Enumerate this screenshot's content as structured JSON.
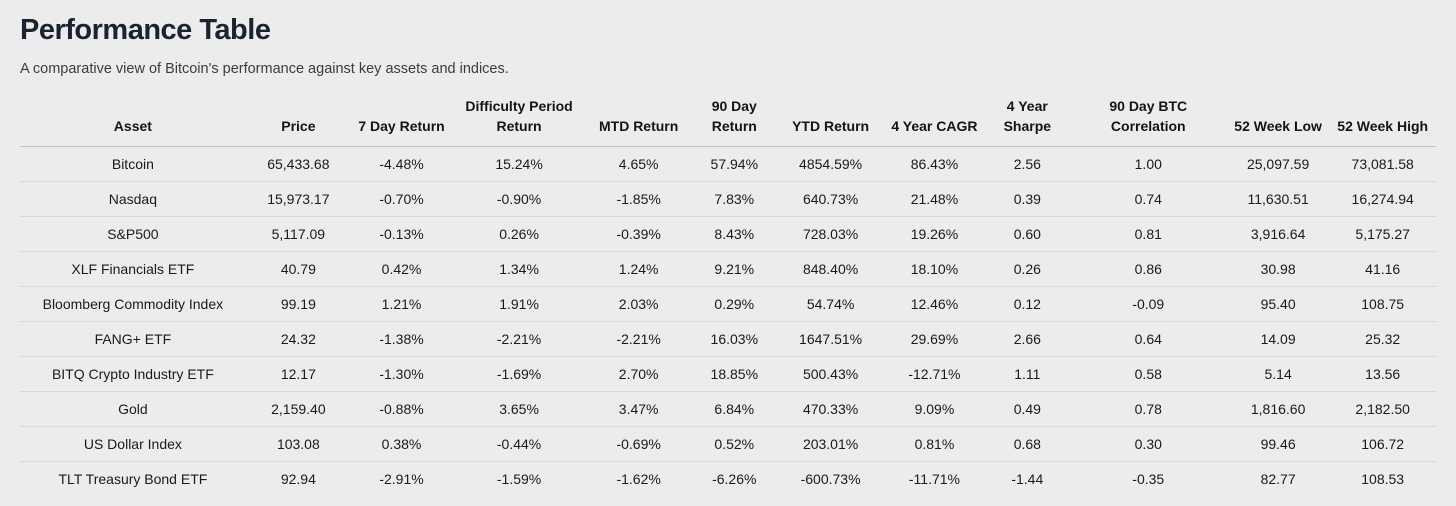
{
  "header": {
    "title": "Performance Table",
    "subtitle": "A comparative view of Bitcoin's performance against key assets and indices."
  },
  "colors": {
    "positive": "#178a20",
    "negative": "#e03131",
    "background": "#ececec",
    "title_text": "#1b2230"
  },
  "table": {
    "columns": [
      {
        "key": "asset",
        "label": "Asset",
        "colored": false
      },
      {
        "key": "price",
        "label": "Price",
        "colored": false
      },
      {
        "key": "return_7d",
        "label": "7 Day Return",
        "colored": true
      },
      {
        "key": "difficulty_period_return",
        "label": "Difficulty Period\nReturn",
        "colored": true
      },
      {
        "key": "mtd_return",
        "label": "MTD Return",
        "colored": true
      },
      {
        "key": "return_90d",
        "label": "90 Day\nReturn",
        "colored": true
      },
      {
        "key": "ytd_return",
        "label": "YTD Return",
        "colored": true
      },
      {
        "key": "cagr_4y",
        "label": "4 Year CAGR",
        "colored": true
      },
      {
        "key": "sharpe_4y",
        "label": "4 Year\nSharpe",
        "colored": true
      },
      {
        "key": "btc_correlation_90d",
        "label": "90 Day BTC\nCorrelation",
        "colored": true
      },
      {
        "key": "week52_low",
        "label": "52 Week Low",
        "colored": false
      },
      {
        "key": "week52_high",
        "label": "52 Week High",
        "colored": false
      }
    ],
    "rows": [
      {
        "asset": "Bitcoin",
        "price": "65,433.68",
        "return_7d": "-4.48%",
        "difficulty_period_return": "15.24%",
        "mtd_return": "4.65%",
        "return_90d": "57.94%",
        "ytd_return": "4854.59%",
        "cagr_4y": "86.43%",
        "sharpe_4y": "2.56",
        "btc_correlation_90d": "1.00",
        "week52_low": "25,097.59",
        "week52_high": "73,081.58"
      },
      {
        "asset": "Nasdaq",
        "price": "15,973.17",
        "return_7d": "-0.70%",
        "difficulty_period_return": "-0.90%",
        "mtd_return": "-1.85%",
        "return_90d": "7.83%",
        "ytd_return": "640.73%",
        "cagr_4y": "21.48%",
        "sharpe_4y": "0.39",
        "btc_correlation_90d": "0.74",
        "week52_low": "11,630.51",
        "week52_high": "16,274.94"
      },
      {
        "asset": "S&P500",
        "price": "5,117.09",
        "return_7d": "-0.13%",
        "difficulty_period_return": "0.26%",
        "mtd_return": "-0.39%",
        "return_90d": "8.43%",
        "ytd_return": "728.03%",
        "cagr_4y": "19.26%",
        "sharpe_4y": "0.60",
        "btc_correlation_90d": "0.81",
        "week52_low": "3,916.64",
        "week52_high": "5,175.27"
      },
      {
        "asset": "XLF Financials ETF",
        "price": "40.79",
        "return_7d": "0.42%",
        "difficulty_period_return": "1.34%",
        "mtd_return": "1.24%",
        "return_90d": "9.21%",
        "ytd_return": "848.40%",
        "cagr_4y": "18.10%",
        "sharpe_4y": "0.26",
        "btc_correlation_90d": "0.86",
        "week52_low": "30.98",
        "week52_high": "41.16"
      },
      {
        "asset": "Bloomberg Commodity Index",
        "price": "99.19",
        "return_7d": "1.21%",
        "difficulty_period_return": "1.91%",
        "mtd_return": "2.03%",
        "return_90d": "0.29%",
        "ytd_return": "54.74%",
        "cagr_4y": "12.46%",
        "sharpe_4y": "0.12",
        "btc_correlation_90d": "-0.09",
        "week52_low": "95.40",
        "week52_high": "108.75"
      },
      {
        "asset": "FANG+ ETF",
        "price": "24.32",
        "return_7d": "-1.38%",
        "difficulty_period_return": "-2.21%",
        "mtd_return": "-2.21%",
        "return_90d": "16.03%",
        "ytd_return": "1647.51%",
        "cagr_4y": "29.69%",
        "sharpe_4y": "2.66",
        "btc_correlation_90d": "0.64",
        "week52_low": "14.09",
        "week52_high": "25.32"
      },
      {
        "asset": "BITQ Crypto Industry ETF",
        "price": "12.17",
        "return_7d": "-1.30%",
        "difficulty_period_return": "-1.69%",
        "mtd_return": "2.70%",
        "return_90d": "18.85%",
        "ytd_return": "500.43%",
        "cagr_4y": "-12.71%",
        "sharpe_4y": "1.11",
        "btc_correlation_90d": "0.58",
        "week52_low": "5.14",
        "week52_high": "13.56"
      },
      {
        "asset": "Gold",
        "price": "2,159.40",
        "return_7d": "-0.88%",
        "difficulty_period_return": "3.65%",
        "mtd_return": "3.47%",
        "return_90d": "6.84%",
        "ytd_return": "470.33%",
        "cagr_4y": "9.09%",
        "sharpe_4y": "0.49",
        "btc_correlation_90d": "0.78",
        "week52_low": "1,816.60",
        "week52_high": "2,182.50"
      },
      {
        "asset": "US Dollar Index",
        "price": "103.08",
        "return_7d": "0.38%",
        "difficulty_period_return": "-0.44%",
        "mtd_return": "-0.69%",
        "return_90d": "0.52%",
        "ytd_return": "203.01%",
        "cagr_4y": "0.81%",
        "sharpe_4y": "0.68",
        "btc_correlation_90d": "0.30",
        "week52_low": "99.46",
        "week52_high": "106.72"
      },
      {
        "asset": "TLT Treasury Bond ETF",
        "price": "92.94",
        "return_7d": "-2.91%",
        "difficulty_period_return": "-1.59%",
        "mtd_return": "-1.62%",
        "return_90d": "-6.26%",
        "ytd_return": "-600.73%",
        "cagr_4y": "-11.71%",
        "sharpe_4y": "-1.44",
        "btc_correlation_90d": "-0.35",
        "week52_low": "82.77",
        "week52_high": "108.53"
      }
    ]
  }
}
